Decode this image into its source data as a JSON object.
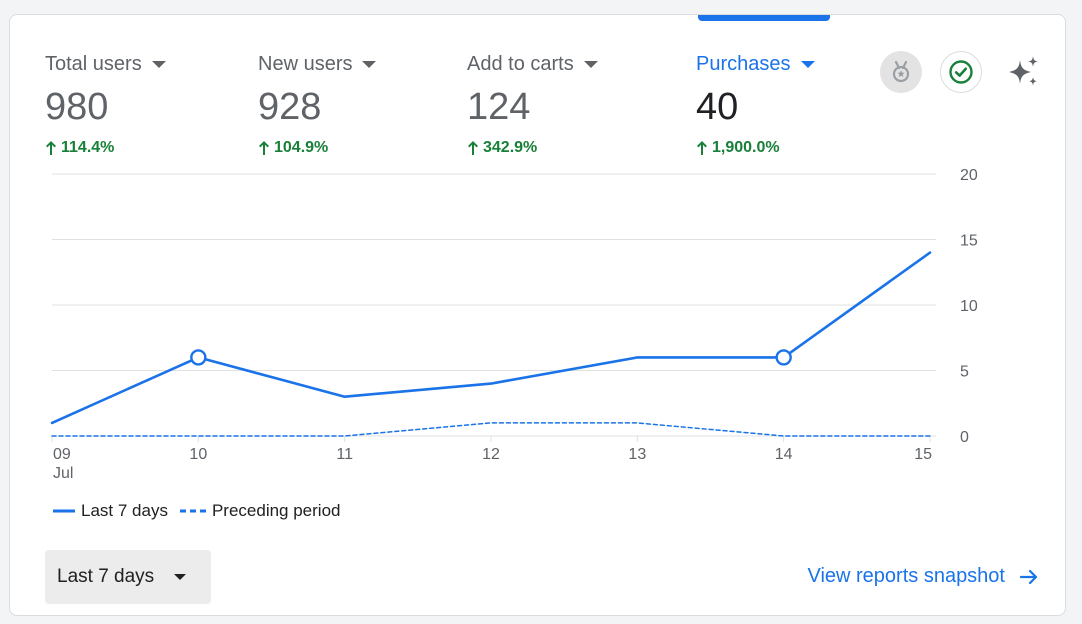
{
  "metrics": [
    {
      "label": "Total users",
      "value": "980",
      "change": "114.4%",
      "active": false
    },
    {
      "label": "New users",
      "value": "928",
      "change": "104.9%",
      "active": false
    },
    {
      "label": "Add to carts",
      "value": "124",
      "change": "342.9%",
      "active": false
    },
    {
      "label": "Purchases",
      "value": "40",
      "change": "1,900.0%",
      "active": true
    }
  ],
  "icons": [
    "medal-icon",
    "check-circle-icon",
    "sparkle-icon"
  ],
  "colors": {
    "accent": "#1a73e8",
    "positive": "#188038",
    "text": "#202124",
    "muted": "#5f6368",
    "grid": "#e0e0e0"
  },
  "chart_data": {
    "type": "line",
    "x": [
      "09",
      "10",
      "11",
      "12",
      "13",
      "14",
      "15"
    ],
    "x_sublabel": "Jul",
    "ylim": [
      0,
      20
    ],
    "yticks": [
      0,
      5,
      10,
      15,
      20
    ],
    "y_axis_side": "right",
    "grid": true,
    "legend_position": "bottom-left",
    "series": [
      {
        "name": "Last 7 days",
        "style": "solid",
        "values": [
          1,
          6,
          3,
          4,
          6,
          6,
          14
        ],
        "markers": [
          1,
          5
        ]
      },
      {
        "name": "Preceding period",
        "style": "dashed",
        "values": [
          0,
          0,
          0,
          1,
          1,
          0,
          0
        ]
      }
    ]
  },
  "footer": {
    "range_label": "Last 7 days",
    "link_label": "View reports snapshot"
  }
}
